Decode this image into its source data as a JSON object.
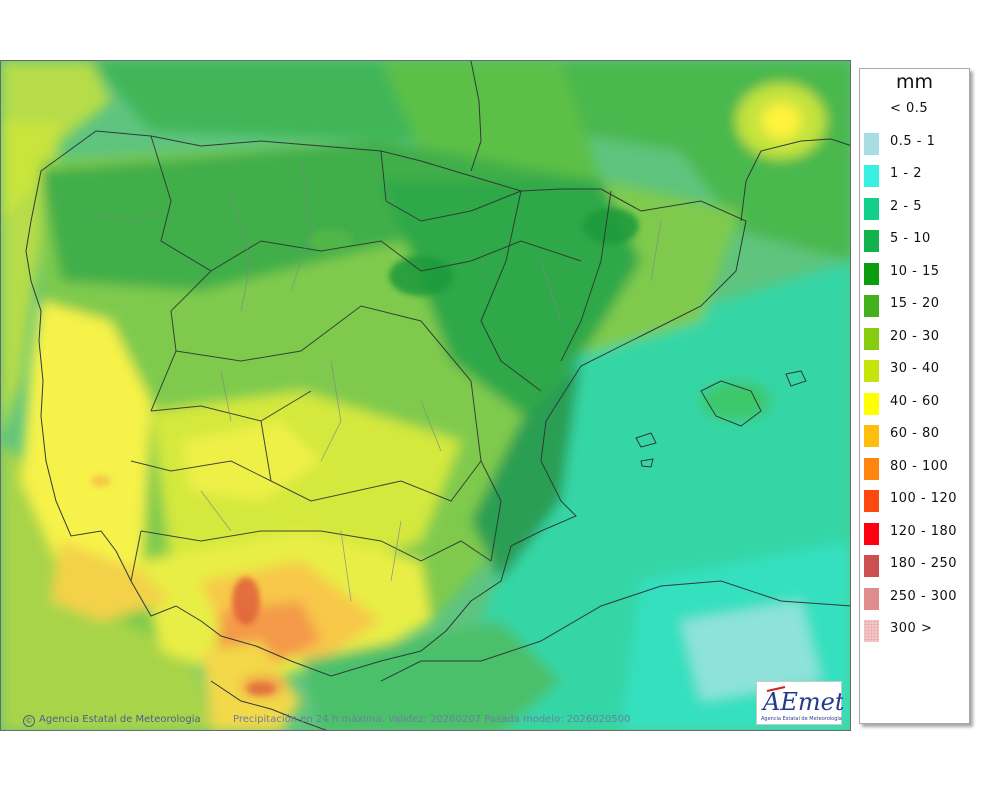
{
  "map": {
    "credit_agency": "Agencia Estatal de Meteorologia",
    "credit_product": "Precipitación en 24 h máxima. Validez: 20260207 Pasada modelo: 2026020500",
    "logo_text": "AEmet",
    "logo_subtitle": "Agencia Estatal de Meteorologia",
    "colors": {
      "sea_base": "#5ec47e",
      "land_base": "#7fca4e"
    }
  },
  "legend": {
    "unit": "mm",
    "items": [
      {
        "label": "< 0.5",
        "color": "#ffffff"
      },
      {
        "label": "0.5 - 1",
        "color": "#a8dde3"
      },
      {
        "label": "1 - 2",
        "color": "#38f0e0"
      },
      {
        "label": "2 - 5",
        "color": "#10d08c"
      },
      {
        "label": "5 - 10",
        "color": "#14b24c"
      },
      {
        "label": "10 - 15",
        "color": "#0c9c10"
      },
      {
        "label": "15 - 20",
        "color": "#44b01c"
      },
      {
        "label": "20 - 30",
        "color": "#88cc10"
      },
      {
        "label": "30 - 40",
        "color": "#c4e40c"
      },
      {
        "label": "40 - 60",
        "color": "#ffff00"
      },
      {
        "label": "60 - 80",
        "color": "#ffbe0c"
      },
      {
        "label": "80 - 100",
        "color": "#ff8410"
      },
      {
        "label": "100 - 120",
        "color": "#ff4810"
      },
      {
        "label": "120 - 180",
        "color": "#ff0010"
      },
      {
        "label": "180 - 250",
        "color": "#cc5050"
      },
      {
        "label": "250 - 300",
        "color": "#e08c8c"
      },
      {
        "label": "300 >",
        "color": "#f4c8c8"
      }
    ]
  }
}
